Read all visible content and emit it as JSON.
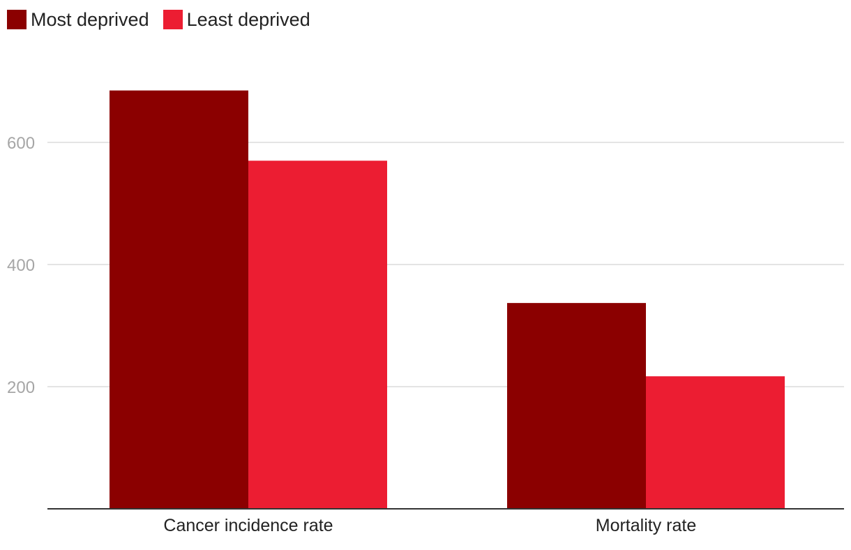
{
  "legend": {
    "items": [
      {
        "label": "Most deprived",
        "color": "#8b0000"
      },
      {
        "label": "Least deprived",
        "color": "#ec1d32"
      }
    ]
  },
  "chart_data": {
    "type": "bar",
    "title": "",
    "xlabel": "",
    "ylabel": "",
    "categories": [
      "Cancer incidence rate",
      "Mortality rate"
    ],
    "series": [
      {
        "name": "Most deprived",
        "color": "#8b0000",
        "values": [
          685,
          337
        ]
      },
      {
        "name": "Least deprived",
        "color": "#ec1d32",
        "values": [
          570,
          217
        ]
      }
    ],
    "ylim": [
      0,
      800
    ],
    "yticks": [
      200,
      400,
      600
    ],
    "grid": true,
    "legend_position": "top-left"
  }
}
